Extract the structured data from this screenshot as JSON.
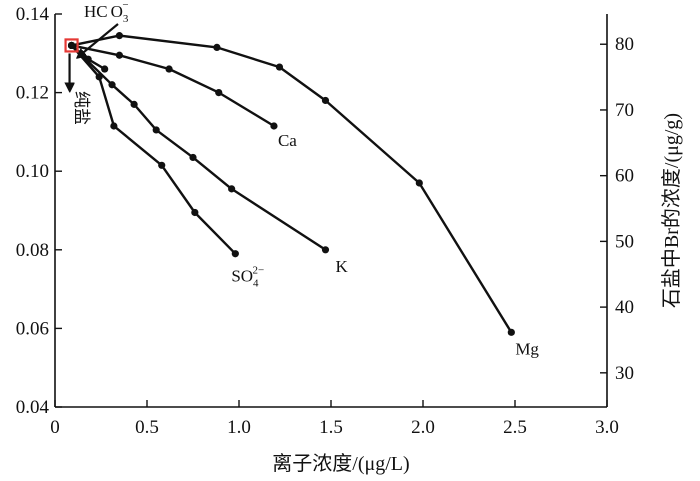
{
  "chart_data": {
    "type": "line",
    "xlabel_main": "离子浓度/",
    "xlabel_unit": "(μg/L)",
    "ylabel_right_main": "石盐中Br的浓度/",
    "ylabel_right_unit": "(μg/g)",
    "xlim": [
      0,
      3.0
    ],
    "ylim_left": [
      0.04,
      0.14
    ],
    "ylim_right": [
      24.8,
      84.6
    ],
    "x_ticks": [
      "0",
      "0.5",
      "1.0",
      "1.5",
      "2.0",
      "2.5",
      "3.0"
    ],
    "y_left_ticks": [
      "0.04",
      "0.06",
      "0.08",
      "0.10",
      "0.12",
      "0.14"
    ],
    "y_right_ticks": [
      "30",
      "40",
      "50",
      "60",
      "70",
      "80"
    ],
    "series": [
      {
        "name": "Mg",
        "x": [
          0.09,
          0.35,
          0.88,
          1.22,
          1.47,
          1.98,
          2.48
        ],
        "y": [
          0.132,
          0.1345,
          0.1315,
          0.1265,
          0.118,
          0.097,
          0.059
        ]
      },
      {
        "name": "Ca",
        "x": [
          0.09,
          0.35,
          0.62,
          0.89,
          1.19
        ],
        "y": [
          0.132,
          0.1295,
          0.126,
          0.12,
          0.1115
        ]
      },
      {
        "name": "K",
        "x": [
          0.09,
          0.31,
          0.43,
          0.55,
          0.75,
          0.96,
          1.47
        ],
        "y": [
          0.132,
          0.122,
          0.117,
          0.1105,
          0.1035,
          0.0955,
          0.08
        ]
      },
      {
        "name": "SO",
        "x": [
          0.09,
          0.24,
          0.32,
          0.58,
          0.76,
          0.98
        ],
        "y": [
          0.132,
          0.124,
          0.1115,
          0.1015,
          0.0895,
          0.079
        ]
      },
      {
        "name": "HCO",
        "x": [
          0.09,
          0.18,
          0.27
        ],
        "y": [
          0.132,
          0.1285,
          0.126
        ]
      }
    ],
    "annotations": {
      "hco3_base": "HC",
      "hco3_mid": "O",
      "hco3_sub": "3",
      "hco3_sup": "−",
      "so4_base": "SO",
      "so4_sub": "4",
      "so4_sup": "2−",
      "pure_salt": "纯盐"
    },
    "colors": {
      "line": "#111111",
      "marker": "#111111",
      "pure_salt_box": "#e53935"
    }
  }
}
